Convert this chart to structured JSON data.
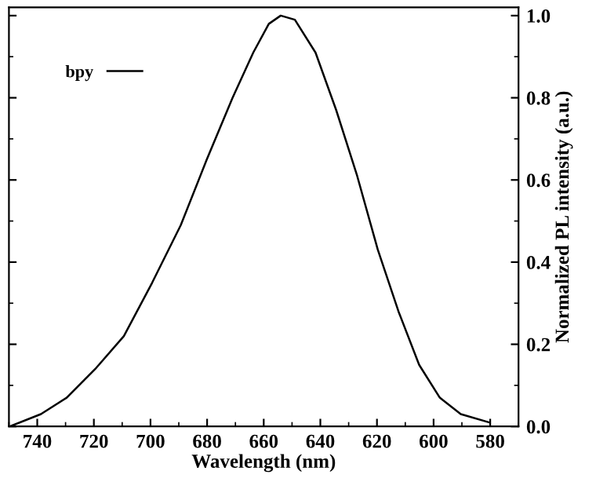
{
  "chart_data": {
    "type": "line",
    "xlabel": "Wavelength (nm)",
    "ylabel": "Normalized PL intensity (a.u.)",
    "series": [
      {
        "name": "bpy",
        "color": "#000000",
        "x": [
          749.7,
          738.7,
          729.6,
          719.5,
          709.4,
          699.4,
          689.3,
          680.1,
          671,
          663.7,
          658.2,
          654,
          649,
          641.7,
          634.4,
          627,
          619.7,
          612.4,
          605.1,
          597.8,
          590.4,
          580.4
        ],
        "values": [
          0.0,
          0.03,
          0.07,
          0.14,
          0.22,
          0.35,
          0.49,
          0.65,
          0.8,
          0.91,
          0.98,
          1.0,
          0.99,
          0.91,
          0.77,
          0.61,
          0.43,
          0.28,
          0.15,
          0.07,
          0.03,
          0.01
        ]
      }
    ],
    "xlim": [
      750,
      570
    ],
    "xticks": [
      740,
      720,
      700,
      680,
      660,
      640,
      620,
      600,
      580
    ],
    "ylim": [
      0,
      1.02
    ],
    "yticks": [
      {
        "value": 0,
        "label": "0.0"
      },
      0.2,
      0.4,
      0.6,
      0.8,
      {
        "value": 1,
        "label": "1.0"
      }
    ],
    "legend": "top left",
    "marker": "none",
    "line_style": "solid",
    "grid": false
  }
}
